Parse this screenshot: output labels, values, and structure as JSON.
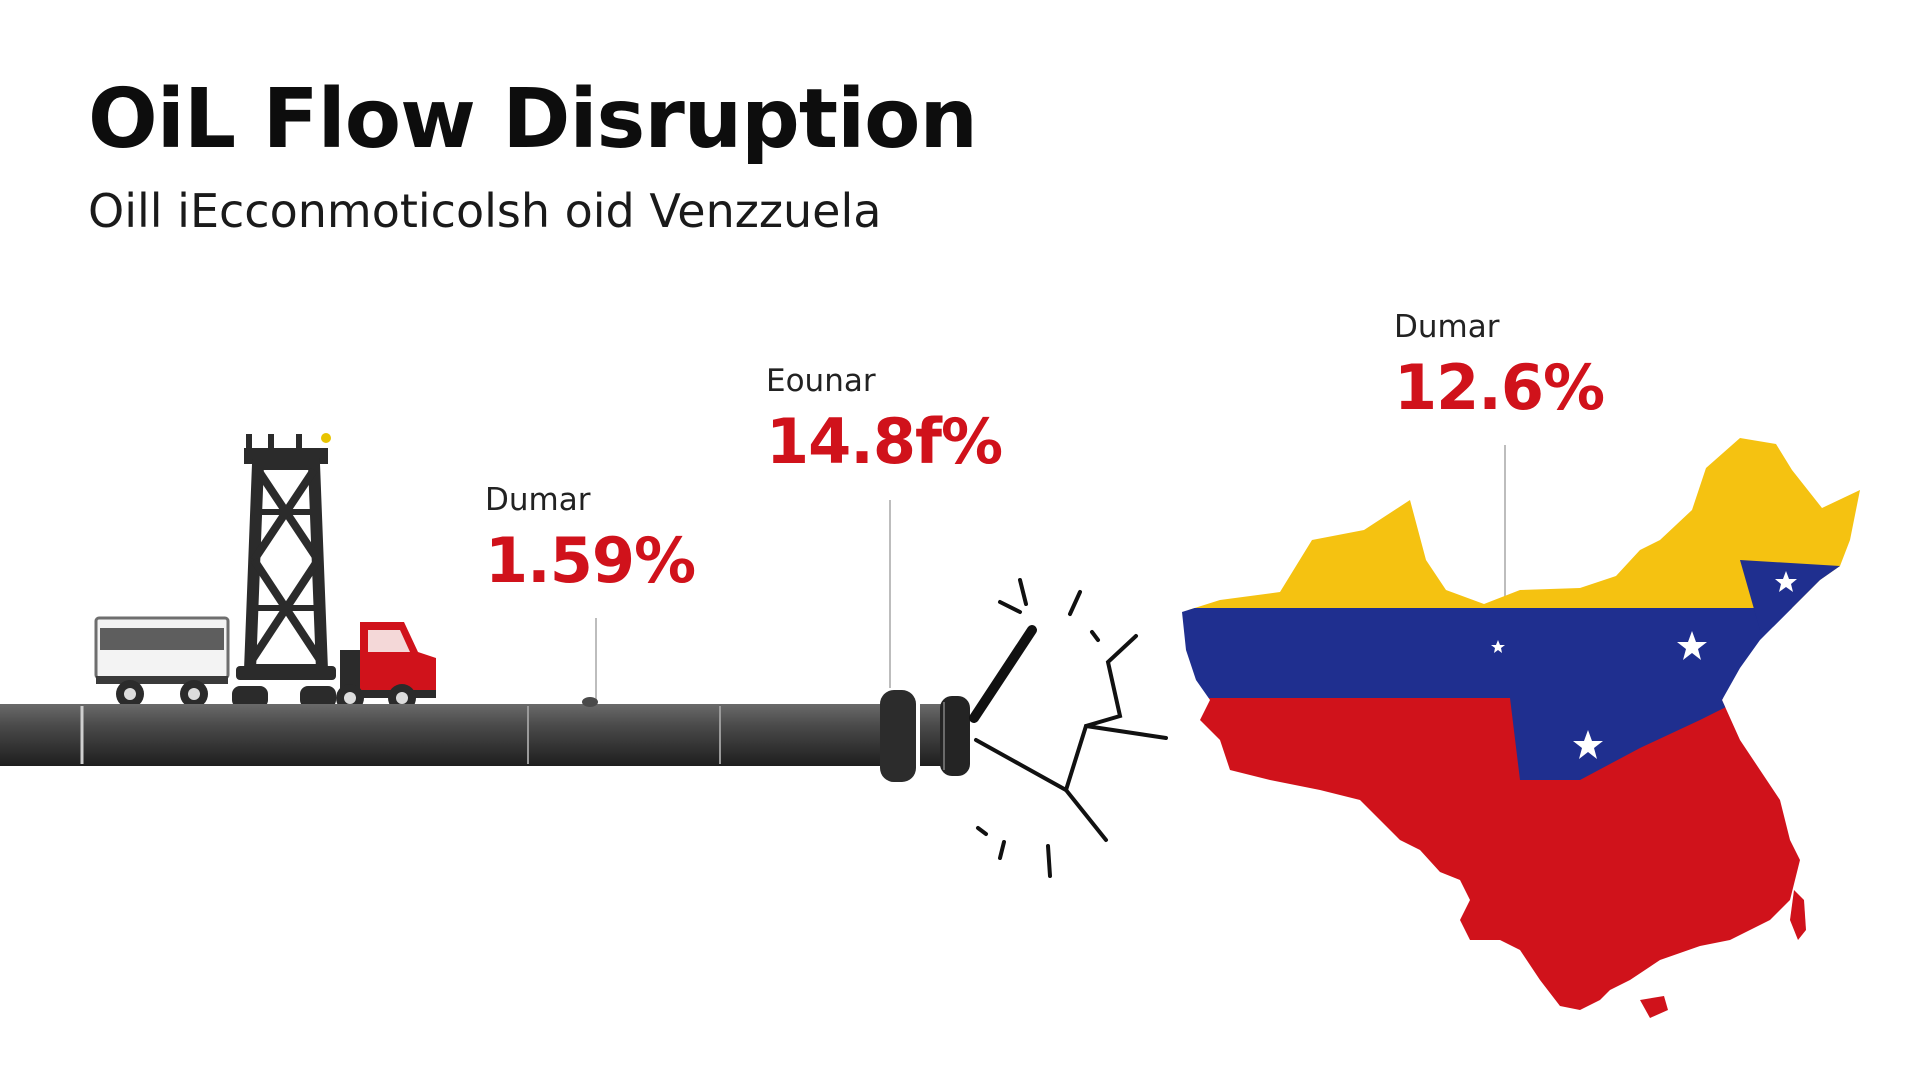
{
  "header": {
    "title": "OiL Flow Disruption",
    "subtitle": "Oill iEcconmoticolsh oid Venzzuela"
  },
  "stats": [
    {
      "label": "Dumar",
      "value": "1.59%"
    },
    {
      "label": "Eounar",
      "value": "14.8f%"
    },
    {
      "label": "Dumar",
      "value": "12.6%"
    }
  ],
  "colors": {
    "value_red": "#d0121b",
    "flag_yellow": "#f5c211",
    "flag_blue": "#1f2f8f",
    "flag_red": "#d0121b",
    "pipe": "#3a3a3a"
  },
  "icons": [
    "oil-derrick-icon",
    "tanker-truck-icon",
    "broken-pipe-icon",
    "crack-icon",
    "flag-map-icon"
  ]
}
